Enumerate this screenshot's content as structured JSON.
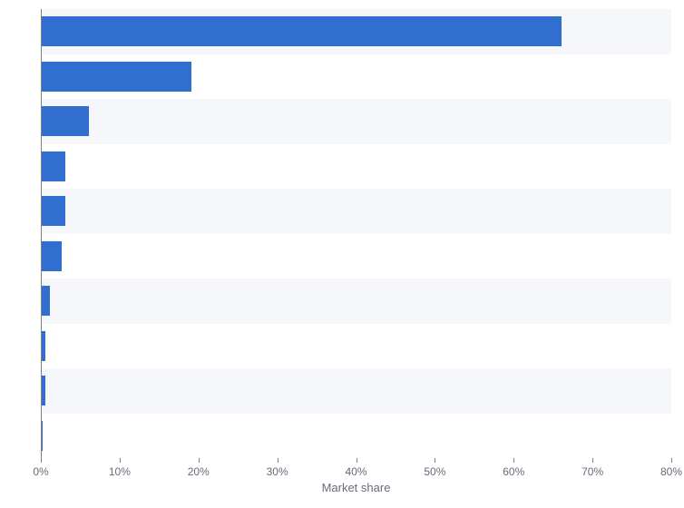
{
  "chart": {
    "type": "bar-horizontal",
    "xlabel": "Market share",
    "xlim": [
      0,
      80
    ],
    "xtick_step": 10,
    "xtick_suffix": "%",
    "bar_color": "#306fcf",
    "band_colors": [
      "#f6f7fa",
      "#ffffff"
    ],
    "axis_line_color": "#808080",
    "tick_label_color": "#6a6a7a",
    "tick_label_fontsize": 12,
    "xlabel_fontsize": 13,
    "background_color": "#ffffff",
    "bar_height_ratio": 0.67,
    "values": [
      66,
      19,
      6,
      3,
      3,
      2.5,
      1,
      0.5,
      0.5,
      0.1
    ]
  }
}
